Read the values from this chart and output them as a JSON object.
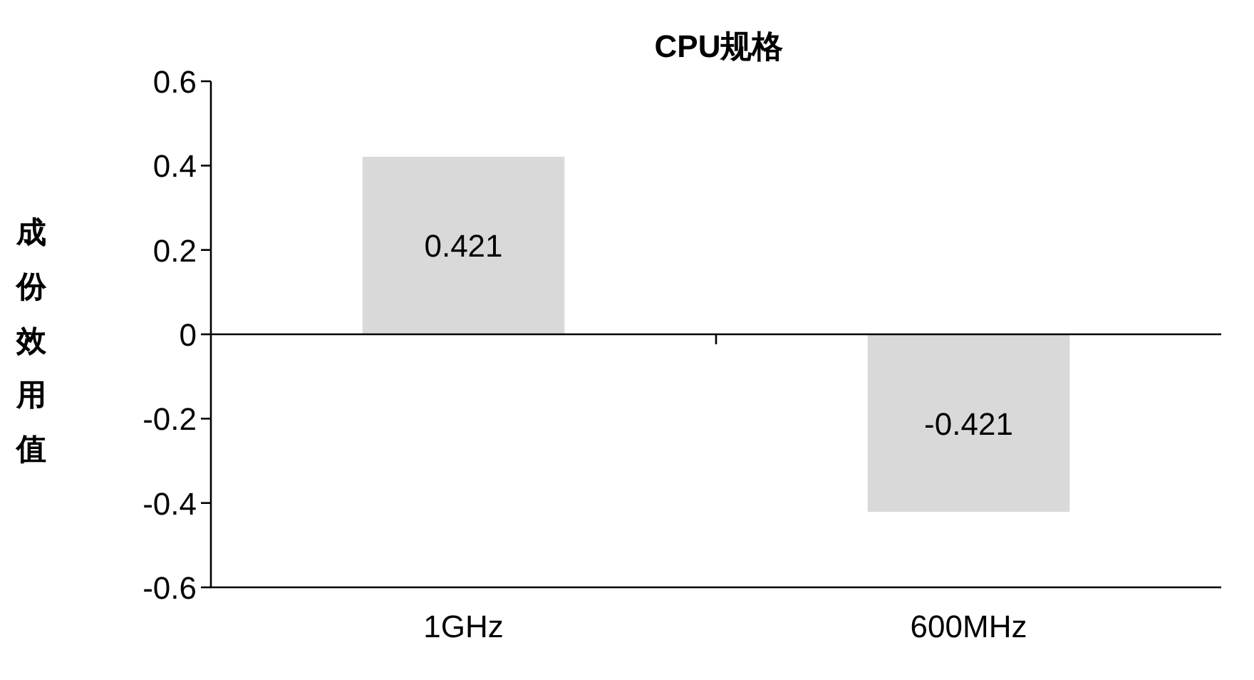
{
  "chart_data": {
    "type": "bar",
    "title": "CPU规格",
    "ylabel": "成份效用值",
    "categories": [
      "1GHz",
      "600MHz"
    ],
    "series": [
      {
        "color": "#d9d9d9",
        "values": [
          0.421,
          -0.421
        ]
      }
    ],
    "ylim": [
      -0.6,
      0.6
    ],
    "yticks": [
      -0.6,
      -0.4,
      -0.2,
      0,
      0.2,
      0.4,
      0.6
    ],
    "data_labels": true
  }
}
